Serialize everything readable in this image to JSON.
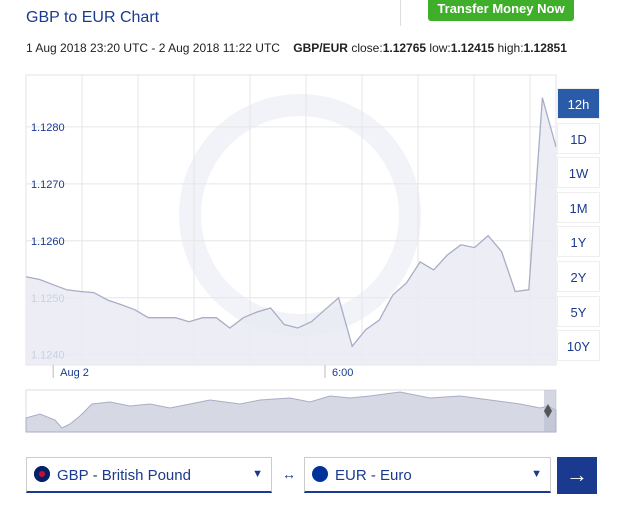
{
  "header": {
    "title": "GBP to EUR Chart",
    "button": "Transfer Money Now"
  },
  "info": {
    "range": "1 Aug 2018 23:20 UTC - 2 Aug 2018 11:22 UTC",
    "pair": "GBP/EUR",
    "close_label": "close:",
    "close": 1.12765,
    "low_label": "low:",
    "low": 1.12415,
    "high_label": "high:",
    "high": 1.12851
  },
  "chart_data": {
    "type": "line",
    "color": "#a9adc6",
    "fill": "#e9eaf3",
    "categories": [
      null,
      null,
      "Aug 2",
      null,
      null,
      null,
      null,
      null,
      null,
      null,
      null,
      null,
      null,
      null,
      null,
      null,
      null,
      null,
      null,
      null,
      null,
      null,
      "6:00",
      null,
      null,
      null,
      null,
      null,
      null,
      null,
      null,
      null,
      null,
      null,
      null,
      null,
      null,
      null,
      null,
      null
    ],
    "values": [
      1.12537,
      1.12532,
      1.12523,
      1.12514,
      1.12511,
      1.12509,
      1.12496,
      1.12488,
      1.12479,
      1.12465,
      1.12465,
      1.12465,
      1.12458,
      1.12465,
      1.12465,
      1.12447,
      1.12465,
      1.12475,
      1.12482,
      1.12453,
      1.12447,
      1.12458,
      1.12479,
      1.125,
      1.12415,
      1.12444,
      1.12461,
      1.12505,
      1.12526,
      1.12563,
      1.12549,
      1.12575,
      1.12593,
      1.12588,
      1.12609,
      1.12581,
      1.12511,
      1.12514,
      1.12851,
      1.12765
    ],
    "ylim": [
      1.12382,
      1.12891
    ],
    "yticks": [
      {
        "value": 1.124,
        "label": "1.1240"
      },
      {
        "value": 1.125,
        "label": "1.1250"
      },
      {
        "value": 1.126,
        "label": "1.1260"
      },
      {
        "value": 1.127,
        "label": "1.1270"
      },
      {
        "value": 1.128,
        "label": "1.1280"
      }
    ],
    "grid": true
  },
  "ranges": [
    "12h",
    "1D",
    "1W",
    "1M",
    "1Y",
    "2Y",
    "5Y",
    "10Y"
  ],
  "from": "GBP - British Pound",
  "to": "EUR - Euro"
}
